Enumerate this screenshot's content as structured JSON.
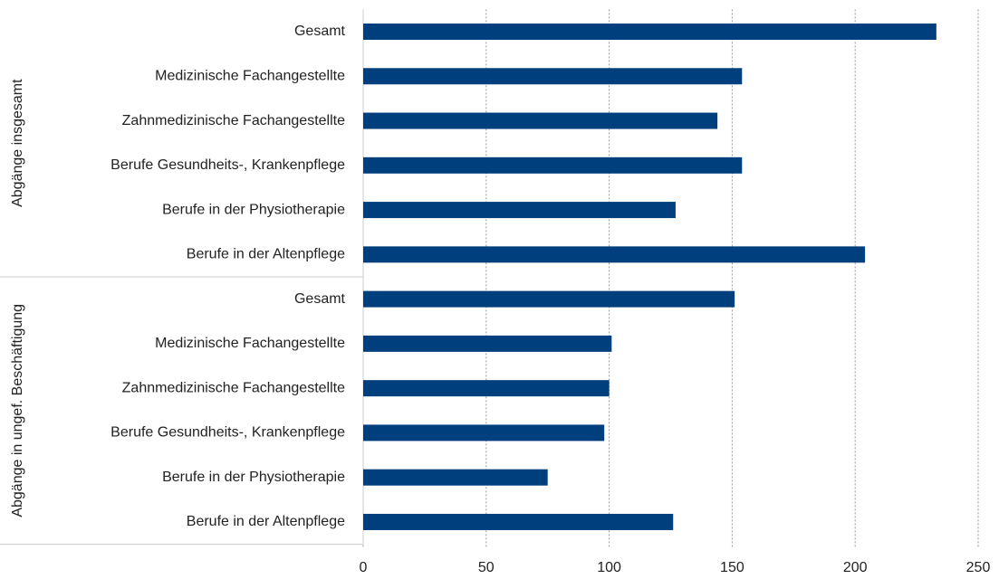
{
  "chart_data": {
    "type": "bar",
    "orientation": "horizontal",
    "color": "#003f7d",
    "groups": [
      {
        "name": "Abgänge insgesamt",
        "categories": [
          "Gesamt",
          "Medizinische Fachangestellte",
          "Zahnmedizinische Fachangestellte",
          "Berufe Gesundheits-, Krankenpflege",
          "Berufe in der Physiotherapie",
          "Berufe in der Altenpflege"
        ],
        "values": [
          233,
          154,
          144,
          154,
          127,
          204
        ]
      },
      {
        "name": "Abgänge in ungef. Beschäftigung",
        "categories": [
          "Gesamt",
          "Medizinische Fachangestellte",
          "Zahnmedizinische Fachangestellte",
          "Berufe Gesundheits-, Krankenpflege",
          "Berufe in der Physiotherapie",
          "Berufe in der Altenpflege"
        ],
        "values": [
          151,
          101,
          100,
          98,
          75,
          126
        ]
      }
    ],
    "xlim": [
      0,
      250
    ],
    "xticks": [
      0,
      50,
      100,
      150,
      200,
      250
    ],
    "grid": true
  }
}
